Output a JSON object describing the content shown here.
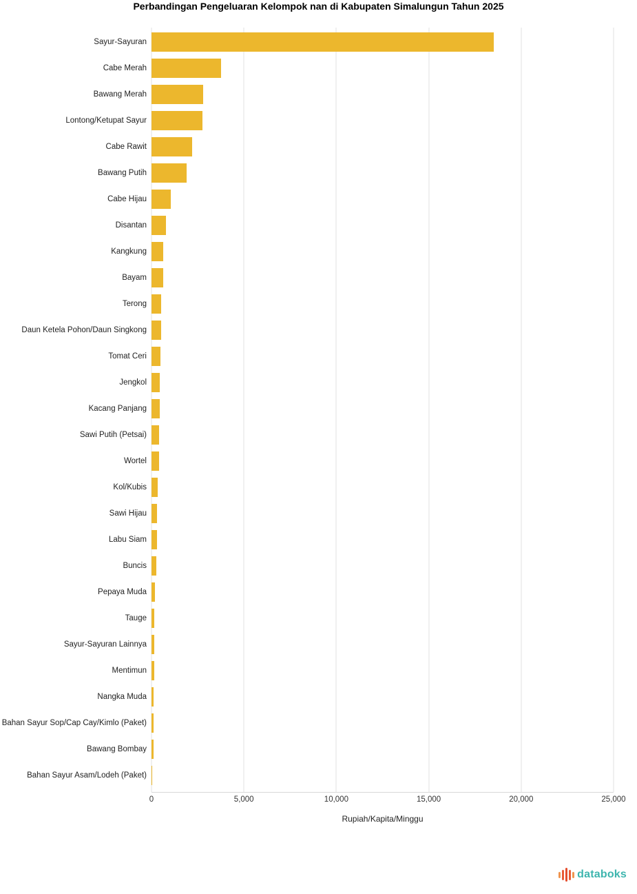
{
  "title": "Perbandingan Pengeluaran Kelompok nan di Kabupaten Simalungun Tahun 2025",
  "chart_data": {
    "type": "bar",
    "orientation": "horizontal",
    "title": "Perbandingan Pengeluaran Kelompok nan di Kabupaten Simalungun Tahun 2025",
    "xlabel": "Rupiah/Kapita/Minggu",
    "ylabel": "",
    "xlim": [
      0,
      25000
    ],
    "x_ticks": [
      0,
      5000,
      10000,
      15000,
      20000,
      25000
    ],
    "x_tick_labels": [
      "0",
      "5,000",
      "10,000",
      "15,000",
      "20,000",
      "25,000"
    ],
    "grid": true,
    "legend": false,
    "bar_color": "#ECB72D",
    "categories": [
      "Sayur-Sayuran",
      "Cabe Merah",
      "Bawang Merah",
      "Lontong/Ketupat Sayur",
      "Cabe Rawit",
      "Bawang Putih",
      "Cabe Hijau",
      "Disantan",
      "Kangkung",
      "Bayam",
      "Terong",
      "Daun Ketela Pohon/Daun Singkong",
      "Tomat Ceri",
      "Jengkol",
      "Kacang Panjang",
      "Sawi Putih (Petsai)",
      "Wortel",
      "Kol/Kubis",
      "Sawi Hijau",
      "Labu Siam",
      "Buncis",
      "Pepaya Muda",
      "Tauge",
      "Sayur-Sayuran Lainnya",
      "Mentimun",
      "Nangka Muda",
      "Bahan Sayur Sop/Cap Cay/Kimlo (Paket)",
      "Bawang Bombay",
      "Bahan Sayur Asam/Lodeh (Paket)"
    ],
    "values": [
      18500,
      3750,
      2800,
      2750,
      2200,
      1900,
      1050,
      780,
      650,
      640,
      540,
      510,
      480,
      460,
      440,
      425,
      410,
      350,
      310,
      290,
      250,
      190,
      165,
      155,
      140,
      125,
      110,
      100,
      40
    ]
  },
  "footer": {
    "brand": "databoks",
    "brand_color": "#3DB5AE",
    "logo_icon": "equalizer-bars-icon",
    "logo_colors": [
      "#F0954F",
      "#E85B36",
      "#E54E2E"
    ]
  }
}
